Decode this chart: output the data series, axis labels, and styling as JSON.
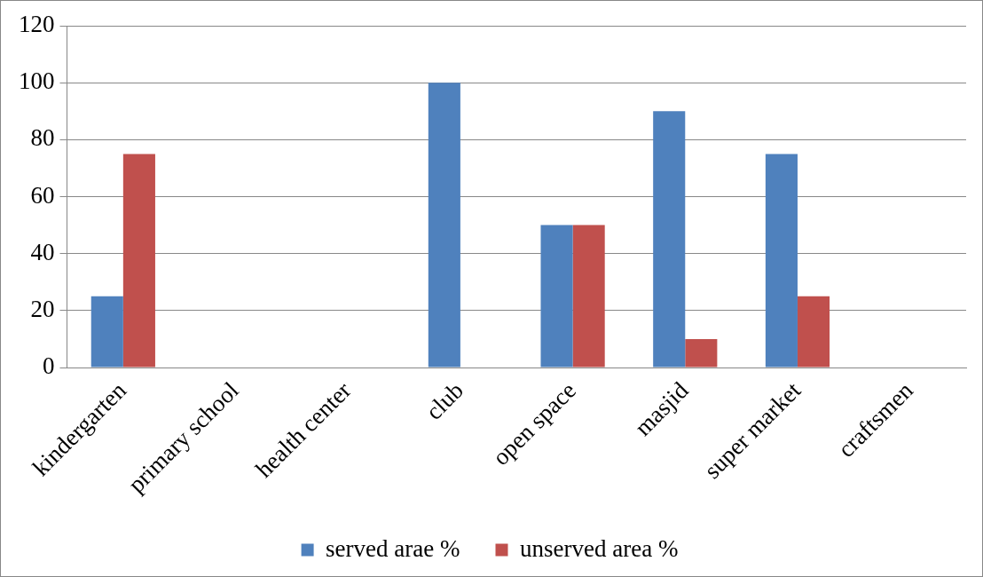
{
  "chart_data": {
    "type": "bar",
    "categories": [
      "kindergarten",
      "primary school",
      "health center",
      "club",
      "open space",
      "masjid",
      "super market",
      "craftsmen"
    ],
    "series": [
      {
        "name": "served arae %",
        "color": "#4f81bd",
        "values": [
          25,
          0,
          0,
          100,
          50,
          90,
          75,
          0
        ]
      },
      {
        "name": "unserved area %",
        "color": "#c0504d",
        "values": [
          75,
          0,
          0,
          0,
          50,
          10,
          25,
          0
        ]
      }
    ],
    "ylim": [
      0,
      120
    ],
    "yticks": [
      0,
      20,
      40,
      60,
      80,
      100,
      120
    ],
    "grid": "y",
    "legend": "bottom"
  }
}
